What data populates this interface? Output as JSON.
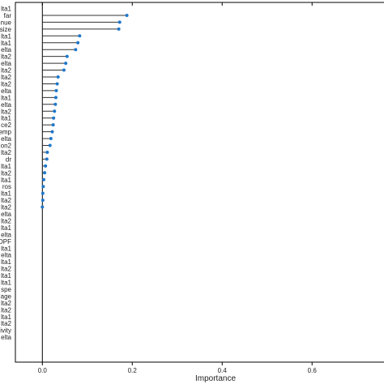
{
  "chart_data": {
    "type": "lollipop",
    "xlabel": "Importance",
    "xlim": [
      -0.06,
      0.76
    ],
    "xticks": [
      0.0,
      0.2,
      0.4,
      0.6
    ],
    "xtick_labels": [
      "0.0",
      "0.2",
      "0.4",
      "0.6"
    ],
    "grid": false,
    "point_color": "#1f77c9",
    "line_color": "#333333",
    "items": [
      {
        "label": "lta1",
        "value": null
      },
      {
        "label": "far",
        "value": 0.188
      },
      {
        "label": "nue",
        "value": 0.172
      },
      {
        "label": "size",
        "value": 0.17
      },
      {
        "label": "lta1",
        "value": 0.083
      },
      {
        "label": "lta1",
        "value": 0.079
      },
      {
        "label": "elta",
        "value": 0.074
      },
      {
        "label": "lta2",
        "value": 0.055
      },
      {
        "label": "elta",
        "value": 0.052
      },
      {
        "label": "lta2",
        "value": 0.048
      },
      {
        "label": "lta2",
        "value": 0.035
      },
      {
        "label": "lta2",
        "value": 0.033
      },
      {
        "label": "elta",
        "value": 0.031
      },
      {
        "label": "lta1",
        "value": 0.03
      },
      {
        "label": "elta",
        "value": 0.029
      },
      {
        "label": "lta2",
        "value": 0.027
      },
      {
        "label": "lta1",
        "value": 0.025
      },
      {
        "label": "ce2",
        "value": 0.024
      },
      {
        "label": "emp",
        "value": 0.022
      },
      {
        "label": "elta",
        "value": 0.019
      },
      {
        "label": "on2",
        "value": 0.017
      },
      {
        "label": "lta2",
        "value": 0.011
      },
      {
        "label": "dr",
        "value": 0.01
      },
      {
        "label": "lta1",
        "value": 0.007
      },
      {
        "label": "lta2",
        "value": 0.005
      },
      {
        "label": "lta1",
        "value": 0.003
      },
      {
        "label": "ros",
        "value": 0.002
      },
      {
        "label": "lta1",
        "value": 0.001
      },
      {
        "label": "lta2",
        "value": 0.001
      },
      {
        "label": "lta2",
        "value": 0.0
      },
      {
        "label": "elta",
        "value": null
      },
      {
        "label": "lta2",
        "value": null
      },
      {
        "label": "lta1",
        "value": null
      },
      {
        "label": "elta",
        "value": null
      },
      {
        "label": "OPF",
        "value": null
      },
      {
        "label": "lta1",
        "value": null
      },
      {
        "label": "elta",
        "value": null
      },
      {
        "label": "lta1",
        "value": null
      },
      {
        "label": "lta2",
        "value": null
      },
      {
        "label": "lta1",
        "value": null
      },
      {
        "label": "lta1",
        "value": null
      },
      {
        "label": "spe",
        "value": null
      },
      {
        "label": "age",
        "value": null
      },
      {
        "label": "lta2",
        "value": null
      },
      {
        "label": "lta2",
        "value": null
      },
      {
        "label": "lta1",
        "value": null
      },
      {
        "label": "lta2",
        "value": null
      },
      {
        "label": "ivity",
        "value": null
      },
      {
        "label": "elta",
        "value": null
      }
    ]
  }
}
